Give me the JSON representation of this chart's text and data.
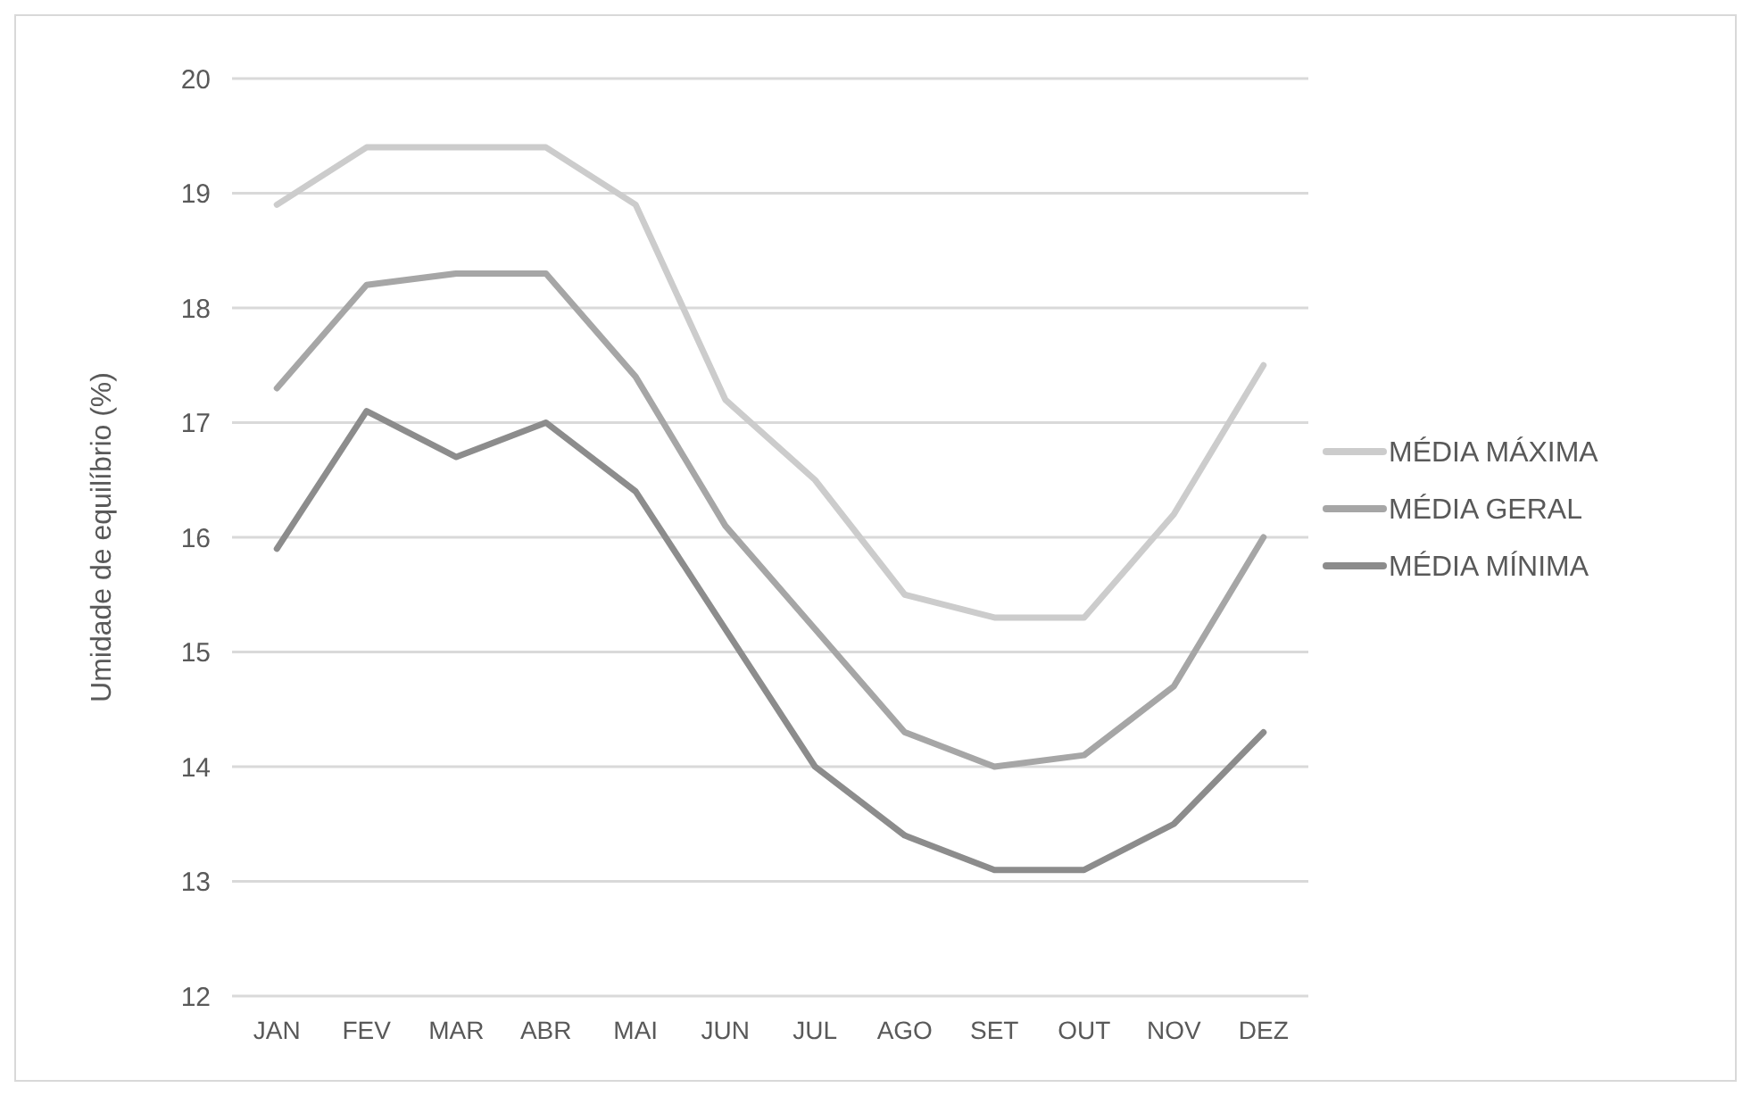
{
  "chart_data": {
    "type": "line",
    "ylabel": "Umidade de equilíbrio (%)",
    "categories": [
      "JAN",
      "FEV",
      "MAR",
      "ABR",
      "MAI",
      "JUN",
      "JUL",
      "AGO",
      "SET",
      "OUT",
      "NOV",
      "DEZ"
    ],
    "series": [
      {
        "name": "MÉDIA MÁXIMA",
        "color": "#cccccc",
        "values": [
          18.9,
          19.4,
          19.4,
          19.4,
          18.9,
          17.2,
          16.5,
          15.5,
          15.3,
          15.3,
          16.2,
          17.5
        ]
      },
      {
        "name": "MÉDIA GERAL",
        "color": "#a6a6a6",
        "values": [
          17.3,
          18.2,
          18.3,
          18.3,
          17.4,
          16.1,
          15.2,
          14.3,
          14.0,
          14.1,
          14.7,
          16.0
        ]
      },
      {
        "name": "MÉDIA MÍNIMA",
        "color": "#8c8c8c",
        "values": [
          15.9,
          17.1,
          16.7,
          17.0,
          16.4,
          15.2,
          14.0,
          13.4,
          13.1,
          13.1,
          13.5,
          14.3
        ]
      }
    ],
    "ylim": [
      12,
      20
    ],
    "yticks": [
      12,
      13,
      14,
      15,
      16,
      17,
      18,
      19,
      20
    ],
    "grid": "y",
    "legend": "right",
    "marker": "none",
    "line_style": "solid"
  }
}
